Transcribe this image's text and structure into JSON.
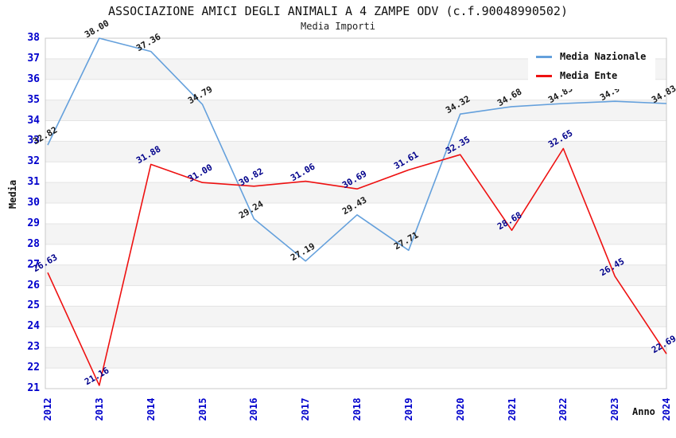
{
  "chart_data": {
    "type": "line",
    "title": "ASSOCIAZIONE AMICI DEGLI ANIMALI A 4 ZAMPE ODV (c.f.90048990502)",
    "subtitle": "Media Importi",
    "xlabel": "Anno",
    "ylabel": "Media",
    "x": [
      "2012",
      "2013",
      "2014",
      "2015",
      "2016",
      "2017",
      "2018",
      "2019",
      "2020",
      "2021",
      "2022",
      "2023",
      "2024"
    ],
    "ylim": [
      21,
      38
    ],
    "y_tick_step": 1,
    "grid": "horizontal gridlines with alternating 1-unit shaded bands",
    "legend_position": "top-right",
    "series": [
      {
        "name": "Media Nazionale",
        "color": "#64a0dc",
        "label_color": "#1a1a1a",
        "values": [
          32.82,
          38.0,
          37.36,
          34.79,
          29.24,
          27.19,
          29.43,
          27.71,
          34.32,
          34.68,
          34.83,
          34.94,
          34.83
        ]
      },
      {
        "name": "Media Ente",
        "color": "#ee1111",
        "label_color": "#00008b",
        "values": [
          26.63,
          21.16,
          31.88,
          31.0,
          30.82,
          31.06,
          30.69,
          31.61,
          32.35,
          28.68,
          32.65,
          26.45,
          22.69
        ]
      }
    ],
    "colors": {
      "tick_label": "#0000cc",
      "band_fill": "#f4f4f4",
      "gridline": "#e4e4e4",
      "plot_border": "#c8c8c8"
    }
  }
}
